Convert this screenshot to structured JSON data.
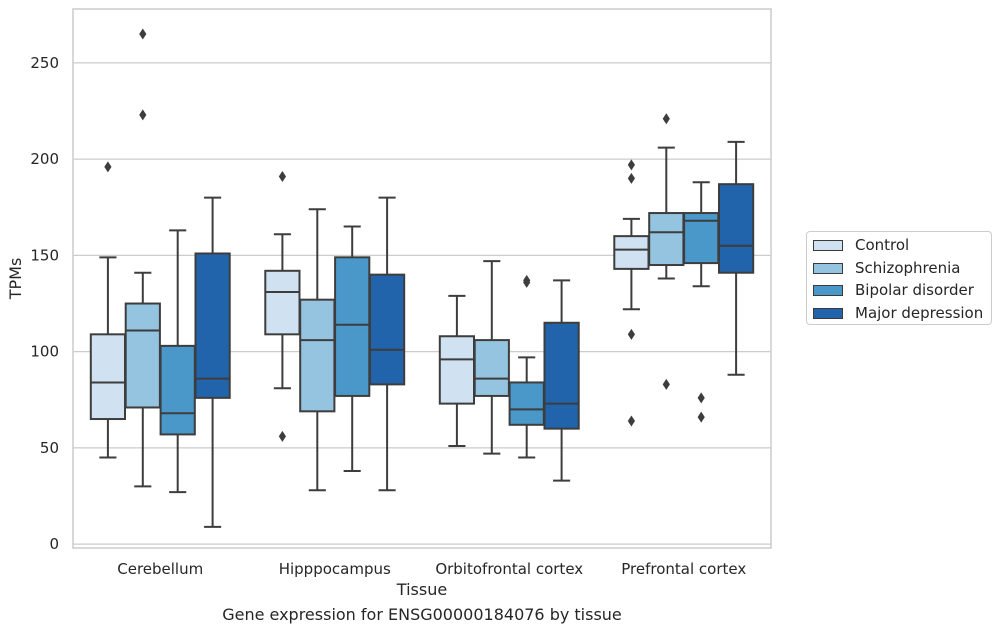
{
  "chart_data": {
    "type": "box",
    "title": "Gene expression for ENSG00000184076 by tissue",
    "xlabel": "Tissue",
    "ylabel": "TPMs",
    "ylim": [
      -2,
      278
    ],
    "yticks": [
      0,
      50,
      100,
      150,
      200,
      250
    ],
    "grid": "horizontal",
    "legend_position": "right",
    "categories": [
      "Cerebellum",
      "Hipppocampus",
      "Orbitofrontal cortex",
      "Prefrontal cortex"
    ],
    "series": [
      {
        "name": "Control",
        "color": "#d0e1f2",
        "boxes": [
          {
            "whisker_low": 45,
            "q1": 65,
            "median": 84,
            "q3": 109,
            "whisker_high": 149,
            "outliers": [
              196
            ]
          },
          {
            "whisker_low": 81,
            "q1": 109,
            "median": 131,
            "q3": 142,
            "whisker_high": 161,
            "outliers": [
              56,
              191
            ]
          },
          {
            "whisker_low": 51,
            "q1": 73,
            "median": 96,
            "q3": 108,
            "whisker_high": 129,
            "outliers": []
          },
          {
            "whisker_low": 122,
            "q1": 143,
            "median": 153,
            "q3": 160,
            "whisker_high": 169,
            "outliers": [
              64,
              109,
              190,
              197
            ]
          }
        ]
      },
      {
        "name": "Schizophrenia",
        "color": "#94c4df",
        "boxes": [
          {
            "whisker_low": 30,
            "q1": 71,
            "median": 111,
            "q3": 125,
            "whisker_high": 141,
            "outliers": [
              223,
              265
            ]
          },
          {
            "whisker_low": 28,
            "q1": 69,
            "median": 106,
            "q3": 127,
            "whisker_high": 174,
            "outliers": []
          },
          {
            "whisker_low": 47,
            "q1": 77,
            "median": 86,
            "q3": 106,
            "whisker_high": 147,
            "outliers": []
          },
          {
            "whisker_low": 138,
            "q1": 145,
            "median": 162,
            "q3": 172,
            "whisker_high": 206,
            "outliers": [
              83,
              221
            ]
          }
        ]
      },
      {
        "name": "Bipolar disorder",
        "color": "#4a98c9",
        "boxes": [
          {
            "whisker_low": 27,
            "q1": 57,
            "median": 68,
            "q3": 103,
            "whisker_high": 163,
            "outliers": []
          },
          {
            "whisker_low": 38,
            "q1": 77,
            "median": 114,
            "q3": 149,
            "whisker_high": 165,
            "outliers": []
          },
          {
            "whisker_low": 45,
            "q1": 62,
            "median": 70,
            "q3": 84,
            "whisker_high": 97,
            "outliers": [
              136,
              137
            ]
          },
          {
            "whisker_low": 134,
            "q1": 146,
            "median": 168,
            "q3": 172,
            "whisker_high": 188,
            "outliers": [
              66,
              76
            ]
          }
        ]
      },
      {
        "name": "Major depression",
        "color": "#2164ab",
        "boxes": [
          {
            "whisker_low": 9,
            "q1": 76,
            "median": 86,
            "q3": 151,
            "whisker_high": 180,
            "outliers": []
          },
          {
            "whisker_low": 28,
            "q1": 83,
            "median": 101,
            "q3": 140,
            "whisker_high": 180,
            "outliers": []
          },
          {
            "whisker_low": 33,
            "q1": 60,
            "median": 73,
            "q3": 115,
            "whisker_high": 137,
            "outliers": []
          },
          {
            "whisker_low": 88,
            "q1": 141,
            "median": 155,
            "q3": 187,
            "whisker_high": 209,
            "outliers": []
          }
        ]
      }
    ]
  }
}
